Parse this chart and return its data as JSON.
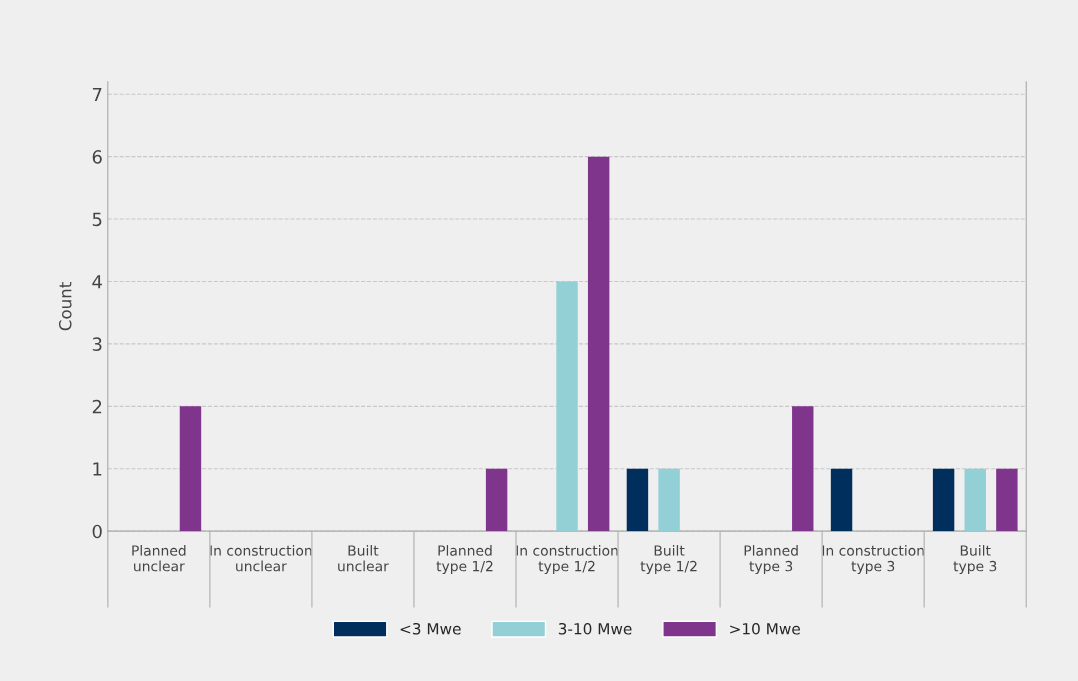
{
  "chart_data": {
    "type": "bar",
    "ylabel": "Count",
    "categories": [
      "Planned\nunclear",
      "In construction\nunclear",
      "Built\nunclear",
      "Planned\ntype 1/2",
      "In construction\ntype 1/2",
      "Built\ntype 1/2",
      "Planned\ntype 3",
      "In construction\ntype 3",
      "Built\ntype 3"
    ],
    "series": [
      {
        "name": "<3 Mwe",
        "color": "#002e5d",
        "values": [
          0,
          0,
          0,
          0,
          0,
          1,
          0,
          1,
          1
        ]
      },
      {
        "name": "3-10 Mwe",
        "color": "#93d0d6",
        "values": [
          0,
          0,
          0,
          0,
          4,
          1,
          0,
          0,
          1
        ]
      },
      {
        "name": ">10 Mwe",
        "color": "#7f358c",
        "values": [
          2,
          0,
          0,
          1,
          6,
          0,
          2,
          0,
          1
        ]
      }
    ],
    "ylim": [
      0,
      7.2
    ],
    "yticks": [
      0,
      1,
      2,
      3,
      4,
      5,
      6,
      7
    ],
    "grid": "y",
    "legend": "bottom"
  }
}
